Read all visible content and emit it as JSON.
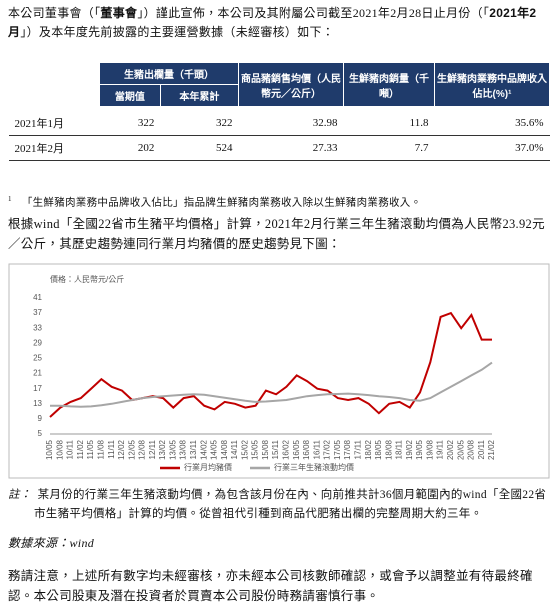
{
  "intro": [
    "本公司董事會（「",
    "董事會",
    "」）謹此宣佈，本公司及其附屬公司截至2021年2月28日止月份（「",
    "2021年2月",
    "」）及本年度先前披露的主要運營數據（未經審核）如下："
  ],
  "table": {
    "header": [
      "生豬出欄量（千頭）",
      "商品豬銷售均價（人民幣元／公斤）",
      "生鮮豬肉銷量（千噸）",
      "生鮮豬肉業務中品牌收入佔比(%)¹"
    ],
    "subheader": [
      "當期值",
      "本年累計"
    ],
    "rows": [
      [
        "2021年1月",
        "322",
        "322",
        "32.98",
        "11.8",
        "35.6%"
      ],
      [
        "2021年2月",
        "202",
        "524",
        "27.33",
        "7.7",
        "37.0%"
      ]
    ]
  },
  "footnote": {
    "marker": "1",
    "text": "「生鮮豬肉業務中品牌收入佔比」指品牌生鮮豬肉業務收入除以生鮮豬肉業務收入。"
  },
  "paragraph": "根據wind「全國22省市生豬平均價格」計算，2021年2月行業三年生豬滾動均價為人民幣23.92元／公斤，其歷史趨勢連同行業月均豬價的歷史趨勢見下圖：",
  "chart_data": {
    "type": "line",
    "y_label": "價格：人民幣元/公斤",
    "categories": [
      "10/05",
      "10/08",
      "10/11",
      "11/02",
      "11/05",
      "11/08",
      "11/11",
      "12/02",
      "12/05",
      "12/08",
      "12/11",
      "13/02",
      "13/05",
      "13/08",
      "13/11",
      "14/02",
      "14/05",
      "14/08",
      "14/11",
      "15/02",
      "15/05",
      "15/08",
      "15/11",
      "16/02",
      "16/05",
      "16/08",
      "16/11",
      "17/02",
      "17/05",
      "17/08",
      "17/11",
      "18/02",
      "18/05",
      "18/08",
      "18/11",
      "19/02",
      "19/05",
      "19/08",
      "19/11",
      "20/02",
      "20/05",
      "20/08",
      "20/11",
      "21/02"
    ],
    "series": [
      {
        "name": "行業月均豬價",
        "color": "#c00000",
        "values": [
          9.5,
          12,
          13.5,
          14.5,
          17,
          19.5,
          17.5,
          16.5,
          14,
          14.5,
          15,
          14.5,
          12,
          14.5,
          15,
          12.5,
          11.5,
          13.5,
          13,
          12,
          12.5,
          16.5,
          15.5,
          17.5,
          20.5,
          19,
          17,
          16.5,
          14.5,
          14,
          14.5,
          13,
          10.5,
          13,
          13.5,
          12,
          16,
          24,
          36,
          37,
          33,
          36.5,
          30,
          30
        ]
      },
      {
        "name": "行業三年生豬滾動均價",
        "color": "#a6a6a6",
        "values": [
          12.5,
          12.5,
          12.3,
          12.2,
          12.3,
          12.6,
          13,
          13.5,
          14,
          14.5,
          14.8,
          15,
          15.2,
          15.4,
          15.5,
          15.4,
          15,
          14.6,
          14.2,
          13.8,
          13.5,
          13.6,
          13.8,
          14,
          14.5,
          15,
          15.3,
          15.5,
          15.6,
          15.7,
          15.5,
          15.3,
          15,
          14.8,
          14.5,
          14,
          13.8,
          14.5,
          16,
          17.5,
          19,
          20.5,
          22,
          23.9
        ]
      }
    ],
    "ylim": [
      5,
      41
    ],
    "yticks": [
      5,
      9,
      13,
      17,
      21,
      25,
      29,
      33,
      37,
      41
    ],
    "grid": false,
    "legend": "bottom"
  },
  "note": {
    "label": "註：",
    "text": "某月份的行業三年生豬滾動均價，為包含該月份在內、向前推共計36個月範圍內的wind「全國22省市生豬平均價格」計算的均價。從曾祖代引種到商品代肥豬出欄的完整周期大約三年。"
  },
  "source": "數據來源：wind",
  "closing": "務請注意，上述所有數字均未經審核，亦未經本公司核數師確認，或會予以調整並有待最終確認。本公司股東及潛在投資者於買賣本公司股份時務請審慎行事。"
}
